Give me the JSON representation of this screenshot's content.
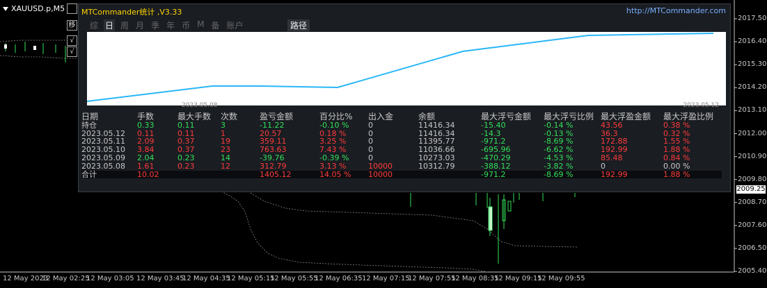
{
  "symbol": "XAUUSD.p,M5",
  "side_buttons": [
    "移",
    "√",
    "√"
  ],
  "panel": {
    "title": "MTCommander统计 ,V3.33",
    "url": "http://MTCommander.com",
    "tabs": [
      "综",
      "日",
      "周",
      "月",
      "季",
      "年",
      "币",
      "M",
      "备",
      "账户"
    ],
    "active_tab": "日",
    "path_tab": "路径",
    "plot_date_start": "2023.05.08",
    "plot_date_end": "2023.05.12",
    "equity_curve": [
      10312.79,
      10273.03,
      11036.66,
      11395.77,
      11416.34,
      11416.34
    ],
    "table": {
      "headers": [
        "日期",
        "手数",
        "最大手数",
        "次数",
        "盈亏金额",
        "百分比%",
        "出入金",
        "余额",
        "最大浮亏金额",
        "最大浮亏比例",
        "最大浮盈金额",
        "最大浮盈比例"
      ],
      "rows": [
        [
          "持仓",
          "0.33",
          "0.11",
          "3",
          "-11.22",
          "-0.10 %",
          "0",
          "11416.34",
          "-15.40",
          "-0.14 %",
          "43.56",
          "0.38 %"
        ],
        [
          "2023.05.12",
          "0.11",
          "0.11",
          "1",
          "20.57",
          "0.18 %",
          "0",
          "11416.34",
          "-14.3",
          "-0.13 %",
          "36.3",
          "0.32 %"
        ],
        [
          "2023.05.11",
          "2.09",
          "0.37",
          "19",
          "359.11",
          "3.25 %",
          "0",
          "11395.77",
          "-971.2",
          "-8.69 %",
          "172.88",
          "1.55 %"
        ],
        [
          "2023.05.10",
          "3.84",
          "0.37",
          "23",
          "763.63",
          "7.43 %",
          "0",
          "11036.66",
          "-695.96",
          "-6.62 %",
          "192.99",
          "1.88 %"
        ],
        [
          "2023.05.09",
          "2.04",
          "0.23",
          "14",
          "-39.76",
          "-0.39 %",
          "0",
          "10273.03",
          "-470.29",
          "-4.53 %",
          "85.48",
          "0.84 %"
        ],
        [
          "2023.05.08",
          "1.61",
          "0.23",
          "12",
          "312.79",
          "3.13 %",
          "10000",
          "10312.79",
          "-388.12",
          "-3.82 %",
          "0",
          "0.00 %"
        ]
      ],
      "row_colors": [
        [
          "neu",
          "pos",
          "pos",
          "pos",
          "pos",
          "pos",
          "neu",
          "neu",
          "pos",
          "pos",
          "neg",
          "neg"
        ],
        [
          "neu",
          "neg",
          "neg",
          "neg",
          "neg",
          "neg",
          "neu",
          "neu",
          "pos",
          "pos",
          "neg",
          "neg"
        ],
        [
          "neu",
          "neg",
          "neg",
          "neg",
          "neg",
          "neg",
          "neu",
          "neu",
          "pos",
          "pos",
          "neg",
          "neg"
        ],
        [
          "neu",
          "neg",
          "neg",
          "neg",
          "neg",
          "neg",
          "neu",
          "neu",
          "pos",
          "pos",
          "neg",
          "neg"
        ],
        [
          "neu",
          "pos",
          "pos",
          "pos",
          "pos",
          "pos",
          "neu",
          "neu",
          "pos",
          "pos",
          "neg",
          "neg"
        ],
        [
          "neu",
          "neg",
          "neg",
          "neg",
          "neg",
          "neg",
          "neg",
          "neu",
          "pos",
          "pos",
          "neu",
          "neu"
        ]
      ],
      "total": [
        "合计",
        "10.02",
        "",
        "",
        "1405.12",
        "14.05 %",
        "10000",
        "",
        "-971.2",
        "-8.69 %",
        "192.99",
        "1.88 %"
      ],
      "total_colors": [
        "neu",
        "neg",
        "neu",
        "neu",
        "neg",
        "neg",
        "neg",
        "neu",
        "pos",
        "pos",
        "neg",
        "neg"
      ]
    }
  },
  "price_axis": [
    "2017.50",
    "2016.40",
    "2015.30",
    "2014.20",
    "2013.10",
    "2012.00",
    "2010.90",
    "2009.80",
    "2008.70",
    "2007.60",
    "2006.50",
    "2005.40"
  ],
  "current_price": "2009.25",
  "time_axis": [
    "12 May 2023",
    "12 May 02:25",
    "12 May 03:05",
    "12 May 03:45",
    "12 May 04:35",
    "12 May 05:15",
    "12 May 05:55",
    "12 May 06:35",
    "12 May 07:15",
    "12 May 07:55",
    "12 May 08:35",
    "12 May 09:15",
    "12 May 09:55"
  ],
  "colors": {
    "accent_title": "#ffd400",
    "curve": "#29b6f6",
    "up": "#33e05a",
    "down": "#ff3b3b"
  }
}
